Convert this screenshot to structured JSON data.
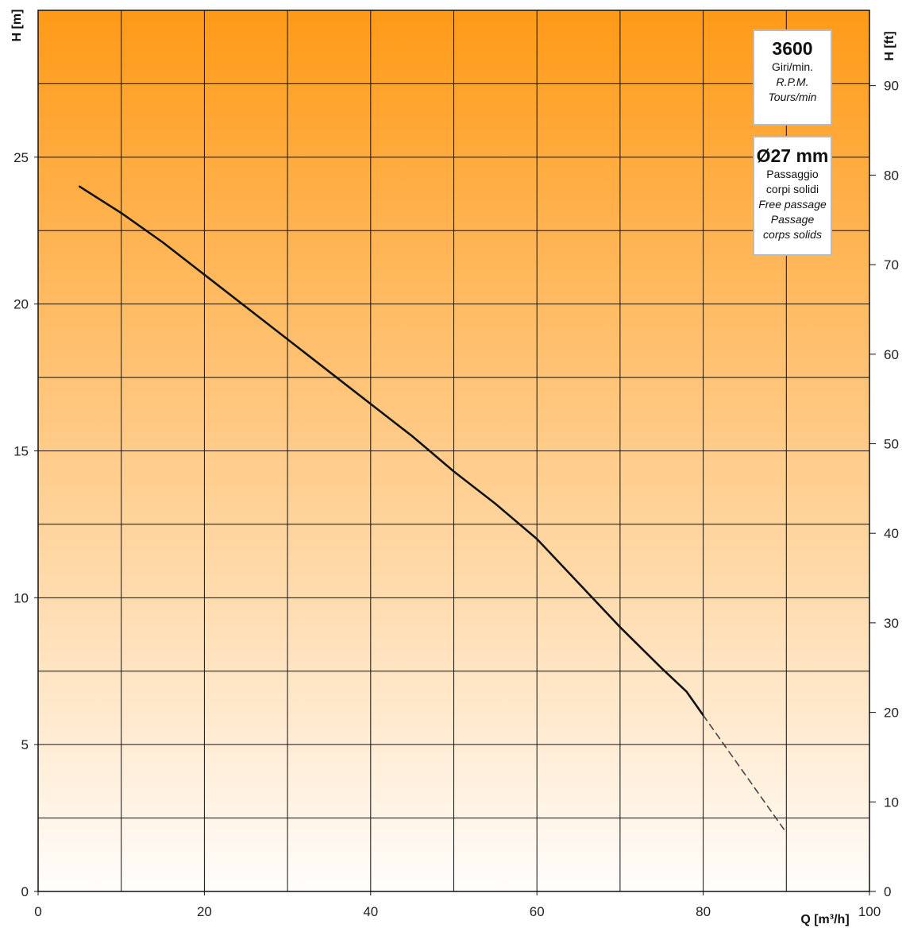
{
  "chart_data": {
    "type": "line",
    "title": "",
    "xlabel": "Q [m³/h]",
    "ylabel": "H [m]",
    "y2label": "H [ft]",
    "xlim": [
      0,
      100
    ],
    "ylim": [
      0,
      30
    ],
    "y2lim": [
      0,
      98.4
    ],
    "x_ticks": [
      0,
      20,
      40,
      60,
      80,
      100
    ],
    "y_ticks": [
      0,
      5,
      10,
      15,
      20,
      25
    ],
    "y2_ticks": [
      0,
      10,
      20,
      30,
      40,
      50,
      60,
      70,
      80,
      90
    ],
    "grid": true,
    "background": {
      "top_color": "#ff9a17",
      "bottom_color": "#fffdfb"
    },
    "series": [
      {
        "line_style": "solid",
        "color": "#111111",
        "x": [
          5,
          10,
          15,
          20,
          25,
          30,
          35,
          40,
          45,
          50,
          55,
          60,
          65,
          70,
          75,
          78,
          80
        ],
        "y": [
          24.0,
          23.1,
          22.1,
          21.0,
          19.9,
          18.8,
          17.7,
          16.6,
          15.5,
          14.3,
          13.2,
          12.0,
          10.5,
          9.0,
          7.6,
          6.8,
          6.0
        ]
      },
      {
        "line_style": "dashed",
        "color": "#444444",
        "x": [
          80,
          90
        ],
        "y": [
          6.0,
          2.0
        ]
      }
    ]
  },
  "info_boxes": {
    "speed": {
      "value": "3600",
      "line1": "Giri/min.",
      "line2": "R.P.M.",
      "line3": "Tours/min"
    },
    "passage": {
      "value": "Ø27 mm",
      "line1": "Passaggio",
      "line2": "corpi solidi",
      "line3": "Free passage",
      "line4": "Passage",
      "line5": "corps solids"
    }
  }
}
